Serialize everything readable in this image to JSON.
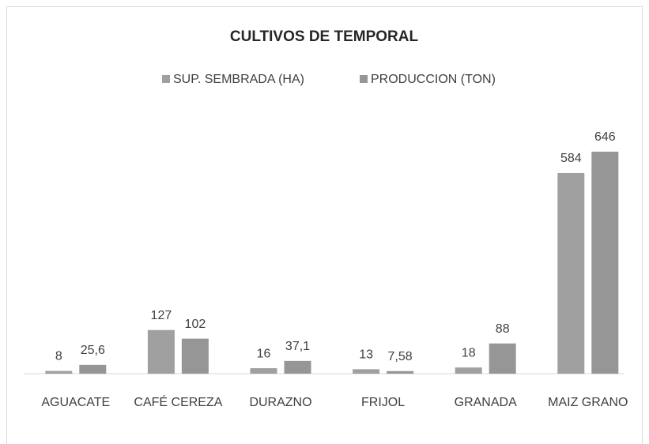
{
  "chart_data": {
    "type": "bar",
    "title": "CULTIVOS DE TEMPORAL",
    "categories": [
      "AGUACATE",
      "CAFÉ CEREZA",
      "DURAZNO",
      "FRIJOL",
      "GRANADA",
      "MAIZ GRANO"
    ],
    "series": [
      {
        "name": "SUP. SEMBRADA (HA)",
        "color": "#a0a0a0",
        "values": [
          8,
          127,
          16,
          13,
          18,
          584
        ],
        "value_labels": [
          "8",
          "127",
          "16",
          "13",
          "18",
          "584"
        ]
      },
      {
        "name": "PRODUCCION (TON)",
        "color": "#969696",
        "values": [
          25.6,
          102,
          37.1,
          7.58,
          88,
          646
        ],
        "value_labels": [
          "25,6",
          "102",
          "37,1",
          "7,58",
          "88",
          "646"
        ]
      }
    ]
  }
}
